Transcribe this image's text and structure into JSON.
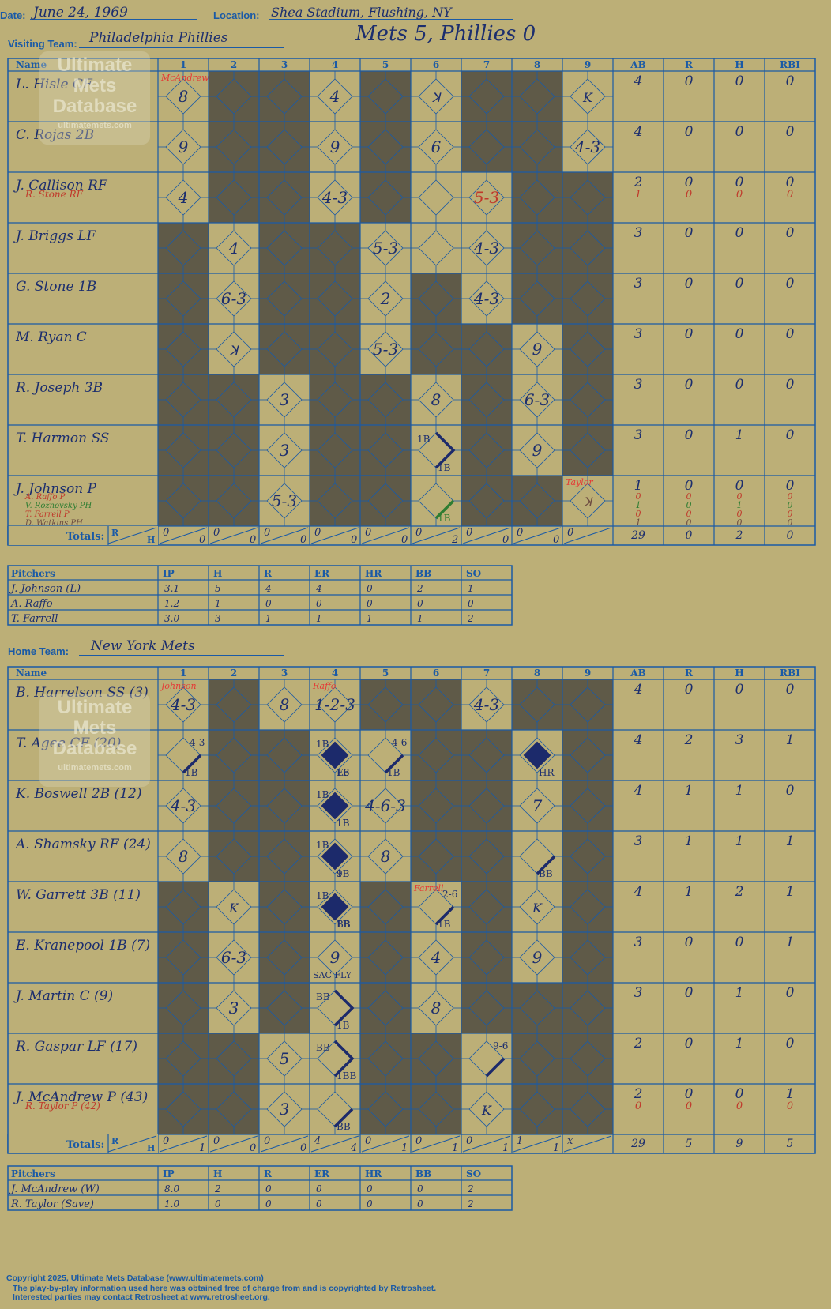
{
  "header": {
    "date_label": "Date:",
    "date": "June 24, 1969",
    "location_label": "Location:",
    "location": "Shea Stadium, Flushing, NY",
    "visiting_label": "Visiting Team:",
    "visiting_team": "Philadelphia Phillies",
    "game_title": "Mets 5, Phillies 0",
    "home_label": "Home Team:",
    "home_team": "New York Mets"
  },
  "watermark": {
    "line1": "Ultimate",
    "line2": "Mets",
    "line3": "Database",
    "url": "ultimatemets.com"
  },
  "grid_headers": {
    "name": "Name",
    "innings": [
      "1",
      "2",
      "3",
      "4",
      "5",
      "6",
      "7",
      "8",
      "9"
    ],
    "stats": [
      "AB",
      "R",
      "H",
      "RBI"
    ],
    "totals": "Totals:",
    "r": "R",
    "h": "H"
  },
  "pitch_headers": [
    "Pitchers",
    "IP",
    "H",
    "R",
    "ER",
    "HR",
    "BB",
    "SO"
  ],
  "visitors": {
    "batters": [
      {
        "name": "L. Hisle CF",
        "ab": "4",
        "r": "0",
        "h": "0",
        "rbi": "0"
      },
      {
        "name": "C. Rojas 2B",
        "ab": "4",
        "r": "0",
        "h": "0",
        "rbi": "0"
      },
      {
        "name": "J. Callison RF",
        "ab": "2",
        "r": "0",
        "h": "0",
        "rbi": "0",
        "subs": [
          {
            "name": "R. Stone RF",
            "color": "#c0392b",
            "ab": "1",
            "r": "0",
            "h": "0",
            "rbi": "0"
          }
        ]
      },
      {
        "name": "J. Briggs LF",
        "ab": "3",
        "r": "0",
        "h": "0",
        "rbi": "0"
      },
      {
        "name": "G. Stone 1B",
        "ab": "3",
        "r": "0",
        "h": "0",
        "rbi": "0"
      },
      {
        "name": "M. Ryan C",
        "ab": "3",
        "r": "0",
        "h": "0",
        "rbi": "0"
      },
      {
        "name": "R. Joseph 3B",
        "ab": "3",
        "r": "0",
        "h": "0",
        "rbi": "0"
      },
      {
        "name": "T. Harmon SS",
        "ab": "3",
        "r": "0",
        "h": "1",
        "rbi": "0"
      },
      {
        "name": "J. Johnson P",
        "ab": "1",
        "r": "0",
        "h": "0",
        "rbi": "0",
        "subs": [
          {
            "name": "A. Raffo P",
            "color": "#c0392b",
            "ab": "0",
            "r": "0",
            "h": "0",
            "rbi": "0"
          },
          {
            "name": "V. Roznovsky PH",
            "color": "#2e7d32",
            "ab": "1",
            "r": "0",
            "h": "1",
            "rbi": "0"
          },
          {
            "name": "T. Farrell P",
            "color": "#c0392b",
            "ab": "0",
            "r": "0",
            "h": "0",
            "rbi": "0"
          },
          {
            "name": "D. Watkins PH",
            "color": "#6d4c41",
            "ab": "1",
            "r": "0",
            "h": "0",
            "rbi": "0"
          }
        ]
      }
    ],
    "mask": [
      "TDDTDTDDT",
      "TDDTDTDDT",
      "TDDTDTTDD",
      "DTDDTTTDD",
      "DTDDTDTDD",
      "DTDDTDDTD",
      "DDTDDTDTD",
      "DDTDDTDTD",
      "DDTDDTDDT"
    ],
    "cells": [
      {
        "r": 0,
        "c": 0,
        "t": "8",
        "top": "McAndrew",
        "tc": "#e53935"
      },
      {
        "r": 0,
        "c": 3,
        "t": "4"
      },
      {
        "r": 0,
        "c": 5,
        "t": "ꓘ",
        "small": true
      },
      {
        "r": 0,
        "c": 8,
        "t": "K",
        "small": true
      },
      {
        "r": 1,
        "c": 0,
        "t": "9"
      },
      {
        "r": 1,
        "c": 3,
        "t": "9"
      },
      {
        "r": 1,
        "c": 5,
        "t": "6"
      },
      {
        "r": 1,
        "c": 8,
        "t": "4-3"
      },
      {
        "r": 2,
        "c": 0,
        "t": "4"
      },
      {
        "r": 2,
        "c": 3,
        "t": "4-3"
      },
      {
        "r": 2,
        "c": 6,
        "t": "5-3",
        "col": "#c0392b"
      },
      {
        "r": 3,
        "c": 1,
        "t": "4"
      },
      {
        "r": 3,
        "c": 4,
        "t": "5-3"
      },
      {
        "r": 3,
        "c": 6,
        "t": "4-3"
      },
      {
        "r": 4,
        "c": 1,
        "t": "6-3"
      },
      {
        "r": 4,
        "c": 4,
        "t": "2"
      },
      {
        "r": 4,
        "c": 6,
        "t": "4-3"
      },
      {
        "r": 5,
        "c": 1,
        "t": "ꓘ",
        "small": true
      },
      {
        "r": 5,
        "c": 4,
        "t": "5-3"
      },
      {
        "r": 5,
        "c": 7,
        "t": "9"
      },
      {
        "r": 6,
        "c": 2,
        "t": "3"
      },
      {
        "r": 6,
        "c": 5,
        "t": "8"
      },
      {
        "r": 6,
        "c": 7,
        "t": "6-3"
      },
      {
        "r": 7,
        "c": 2,
        "t": "3"
      },
      {
        "r": 7,
        "c": 5,
        "t": "",
        "bases": 2,
        "labels": [
          "1B",
          "1B"
        ]
      },
      {
        "r": 7,
        "c": 7,
        "t": "9"
      },
      {
        "r": 8,
        "c": 2,
        "t": "5-3"
      },
      {
        "r": 8,
        "c": 5,
        "t": "",
        "bases": 1,
        "labels": [
          "",
          "1B"
        ],
        "col": "#2e7d32"
      },
      {
        "r": 8,
        "c": 8,
        "t": "ꓘ",
        "small": true,
        "top": "Taylor",
        "tc": "#e53935",
        "col": "#6d4c41"
      }
    ],
    "totals": {
      "innings": [
        [
          "0",
          "0"
        ],
        [
          "0",
          "0"
        ],
        [
          "0",
          "0"
        ],
        [
          "0",
          "0"
        ],
        [
          "0",
          "0"
        ],
        [
          "0",
          "2"
        ],
        [
          "0",
          "0"
        ],
        [
          "0",
          "0"
        ],
        [
          "0",
          ""
        ]
      ],
      "ab": "29",
      "r": "0",
      "h": "2",
      "rbi": "0"
    },
    "pitchers": [
      {
        "name": "J. Johnson (L)",
        "ip": "3.1",
        "h": "5",
        "r": "4",
        "er": "4",
        "hr": "0",
        "bb": "2",
        "so": "1"
      },
      {
        "name": "A. Raffo",
        "ip": "1.2",
        "h": "1",
        "r": "0",
        "er": "0",
        "hr": "0",
        "bb": "0",
        "so": "0"
      },
      {
        "name": "T. Farrell",
        "ip": "3.0",
        "h": "3",
        "r": "1",
        "er": "1",
        "hr": "1",
        "bb": "1",
        "so": "2"
      }
    ]
  },
  "home": {
    "batters": [
      {
        "name": "B. Harrelson SS (3)",
        "ab": "4",
        "r": "0",
        "h": "0",
        "rbi": "0"
      },
      {
        "name": "T. Agee CF (20)",
        "ab": "4",
        "r": "2",
        "h": "3",
        "rbi": "1"
      },
      {
        "name": "K. Boswell 2B (12)",
        "ab": "4",
        "r": "1",
        "h": "1",
        "rbi": "0"
      },
      {
        "name": "A. Shamsky RF (24)",
        "ab": "3",
        "r": "1",
        "h": "1",
        "rbi": "1"
      },
      {
        "name": "W. Garrett 3B (11)",
        "ab": "4",
        "r": "1",
        "h": "2",
        "rbi": "1"
      },
      {
        "name": "E. Kranepool 1B (7)",
        "ab": "3",
        "r": "0",
        "h": "0",
        "rbi": "1"
      },
      {
        "name": "J. Martin C (9)",
        "ab": "3",
        "r": "0",
        "h": "1",
        "rbi": "0"
      },
      {
        "name": "R. Gaspar LF (17)",
        "ab": "2",
        "r": "0",
        "h": "1",
        "rbi": "0"
      },
      {
        "name": "J. McAndrew P (43)",
        "ab": "2",
        "r": "0",
        "h": "0",
        "rbi": "1",
        "subs": [
          {
            "name": "R. Taylor P (42)",
            "color": "#c0392b",
            "ab": "0",
            "r": "0",
            "h": "0",
            "rbi": "0"
          }
        ]
      }
    ],
    "mask": [
      "TDTTDDTDD",
      "TDDTTDDTD",
      "TDDTTDDTD",
      "TDDTTDDTD",
      "DTDTDTDTD",
      "DTDTDTDTD",
      "DTDTDTDDD",
      "DDTTDDTDD",
      "DDTTDDTDD"
    ],
    "cells": [
      {
        "r": 0,
        "c": 0,
        "t": "4-3",
        "top": "Johnson",
        "tc": "#e53935"
      },
      {
        "r": 0,
        "c": 2,
        "t": "8"
      },
      {
        "r": 0,
        "c": 3,
        "t": "1-2-3",
        "top": "Raffo",
        "tc": "#e53935"
      },
      {
        "r": 0,
        "c": 6,
        "t": "4-3"
      },
      {
        "r": 1,
        "c": 0,
        "t": "",
        "bases": 1,
        "labels": [
          "",
          "1B"
        ],
        "note": "4-3"
      },
      {
        "r": 1,
        "c": 3,
        "t": "",
        "bases": 4,
        "labels": [
          "1B",
          "1B",
          "E6"
        ]
      },
      {
        "r": 1,
        "c": 4,
        "t": "",
        "bases": 1,
        "labels": [
          "",
          "1B"
        ],
        "note": "4-6"
      },
      {
        "r": 1,
        "c": 7,
        "t": "",
        "bases": 4,
        "labels": [
          "",
          "HR"
        ]
      },
      {
        "r": 2,
        "c": 0,
        "t": "4-3"
      },
      {
        "r": 2,
        "c": 3,
        "t": "",
        "bases": 4,
        "labels": [
          "1B",
          "1B",
          "1B"
        ]
      },
      {
        "r": 2,
        "c": 4,
        "t": "4-6-3"
      },
      {
        "r": 2,
        "c": 7,
        "t": "7"
      },
      {
        "r": 3,
        "c": 0,
        "t": "8"
      },
      {
        "r": 3,
        "c": 3,
        "t": "",
        "bases": 4,
        "labels": [
          "1B",
          "1B",
          "9"
        ]
      },
      {
        "r": 3,
        "c": 4,
        "t": "8"
      },
      {
        "r": 3,
        "c": 7,
        "t": "",
        "bases": 1,
        "labels": [
          "",
          "BB"
        ]
      },
      {
        "r": 4,
        "c": 1,
        "t": "K",
        "small": true
      },
      {
        "r": 4,
        "c": 3,
        "t": "",
        "bases": 4,
        "labels": [
          "1B",
          "BB",
          "1B"
        ]
      },
      {
        "r": 4,
        "c": 5,
        "t": "",
        "bases": 1,
        "labels": [
          "",
          "1B"
        ],
        "note": "2-6",
        "top": "Farrell",
        "tc": "#e53935"
      },
      {
        "r": 4,
        "c": 7,
        "t": "K",
        "small": true
      },
      {
        "r": 5,
        "c": 1,
        "t": "6-3"
      },
      {
        "r": 5,
        "c": 3,
        "t": "9",
        "note2": "SAC FLY"
      },
      {
        "r": 5,
        "c": 5,
        "t": "4"
      },
      {
        "r": 5,
        "c": 7,
        "t": "9"
      },
      {
        "r": 6,
        "c": 1,
        "t": "3"
      },
      {
        "r": 6,
        "c": 3,
        "t": "",
        "bases": 2,
        "labels": [
          "BB",
          "1B"
        ]
      },
      {
        "r": 6,
        "c": 5,
        "t": "8"
      },
      {
        "r": 7,
        "c": 2,
        "t": "5"
      },
      {
        "r": 7,
        "c": 3,
        "t": "",
        "bases": 2,
        "labels": [
          "BB",
          "1BB"
        ]
      },
      {
        "r": 7,
        "c": 6,
        "t": "",
        "bases": 1,
        "labels": [
          "",
          ""
        ],
        "note": "9-6"
      },
      {
        "r": 8,
        "c": 2,
        "t": "3"
      },
      {
        "r": 8,
        "c": 3,
        "t": "",
        "bases": 1,
        "labels": [
          "",
          "BB"
        ]
      },
      {
        "r": 8,
        "c": 6,
        "t": "K",
        "small": true
      }
    ],
    "totals": {
      "innings": [
        [
          "0",
          "1"
        ],
        [
          "0",
          "0"
        ],
        [
          "0",
          "0"
        ],
        [
          "4",
          "4"
        ],
        [
          "0",
          "1"
        ],
        [
          "0",
          "1"
        ],
        [
          "0",
          "1"
        ],
        [
          "1",
          "1"
        ],
        [
          "x",
          ""
        ]
      ],
      "ab": "29",
      "r": "5",
      "h": "9",
      "rbi": "5"
    },
    "pitchers": [
      {
        "name": "J. McAndrew (W)",
        "ip": "8.0",
        "h": "2",
        "r": "0",
        "er": "0",
        "hr": "0",
        "bb": "0",
        "so": "2"
      },
      {
        "name": "R. Taylor (Save)",
        "ip": "1.0",
        "h": "0",
        "r": "0",
        "er": "0",
        "hr": "0",
        "bb": "0",
        "so": "2"
      }
    ]
  },
  "footer": {
    "line1": "Copyright 2025, Ultimate Mets Database (www.ultimatemets.com)",
    "line2": "The play-by-play information used here was obtained free of charge from and is copyrighted by Retrosheet.",
    "line3": "Interested parties may contact Retrosheet at www.retrosheet.org."
  },
  "colors": {
    "bg": "#bcaf77",
    "line": "#1a5aa6",
    "dark": "#5f5a48",
    "ink": "#1c2e6e"
  }
}
